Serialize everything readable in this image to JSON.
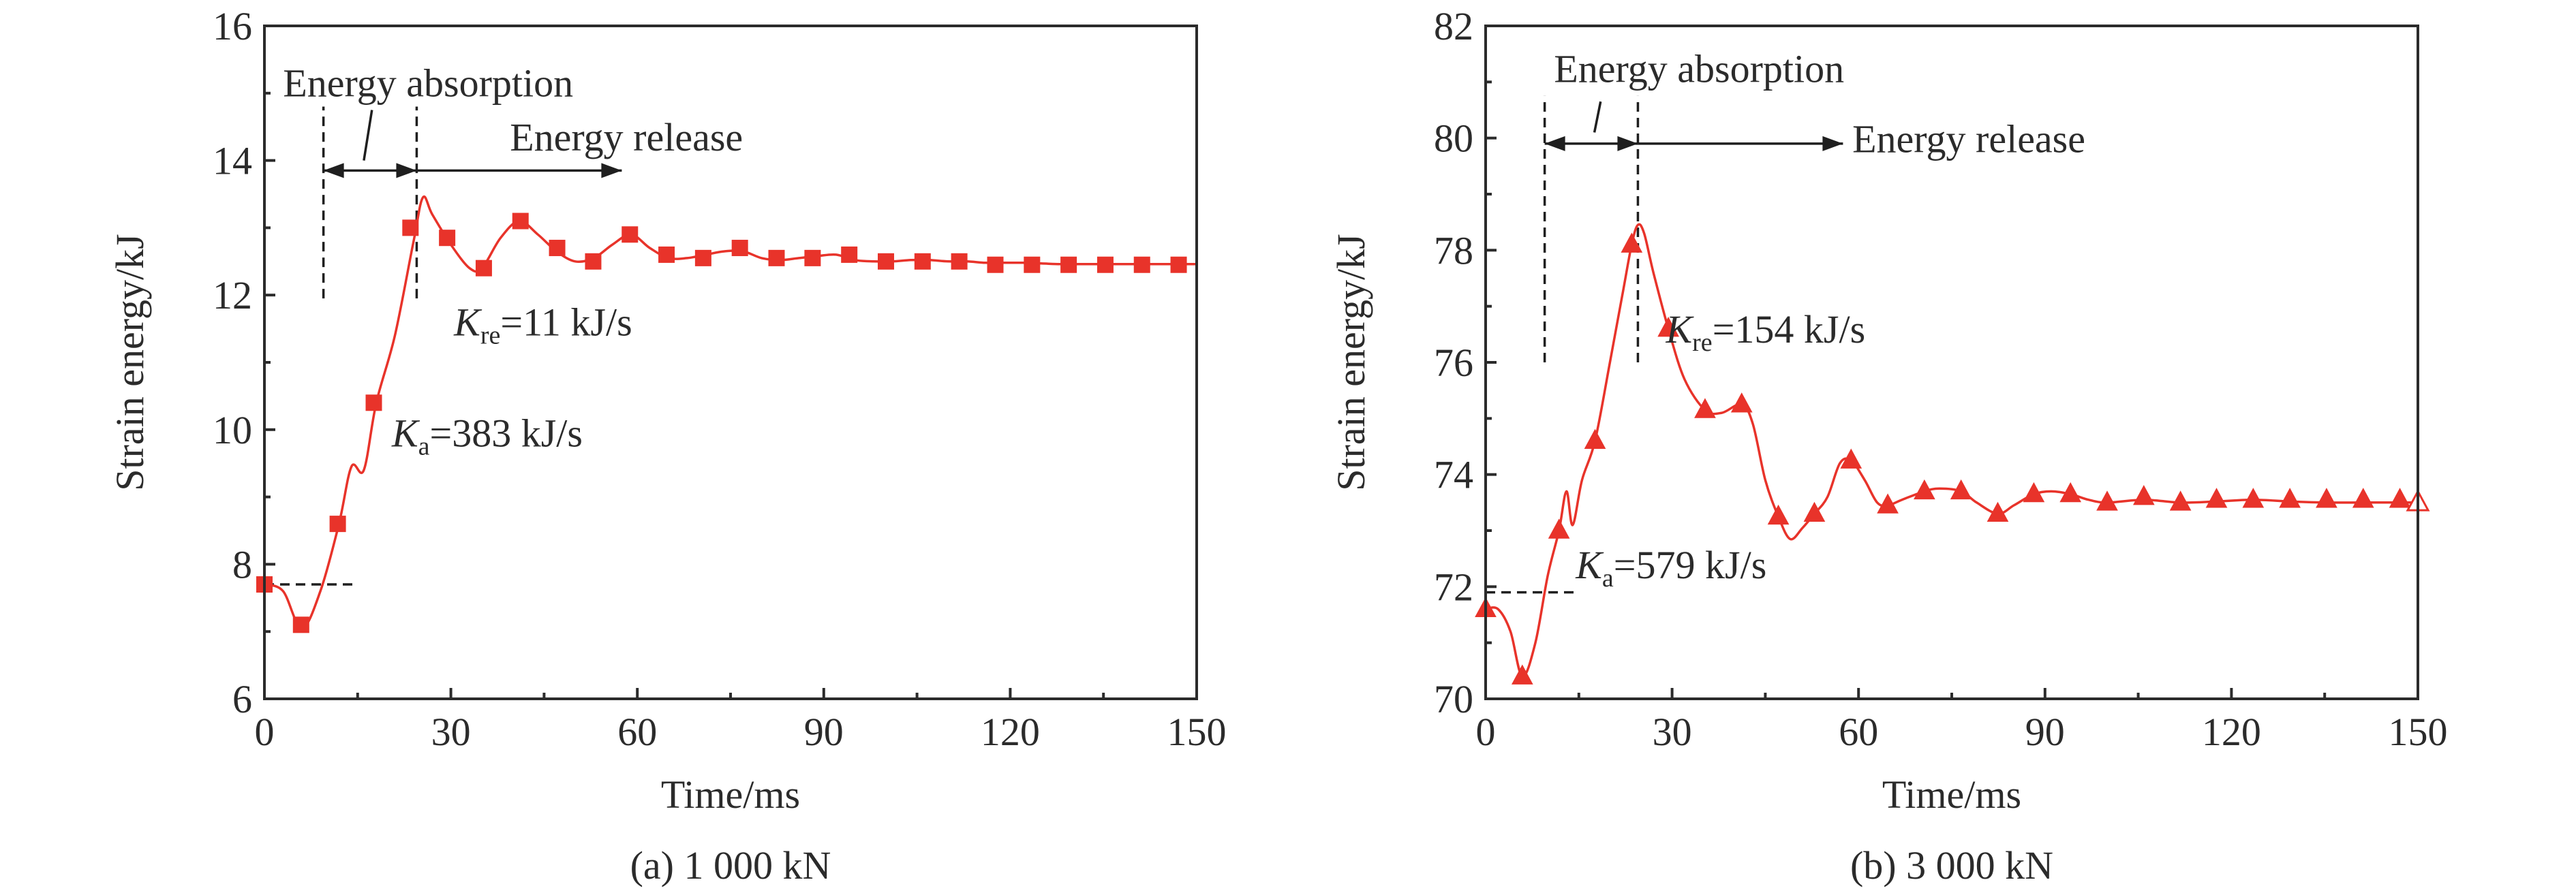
{
  "chart_data": [
    {
      "type": "line",
      "panel_caption": "(a) 1 000 kN",
      "xlabel": "Time/ms",
      "ylabel": "Strain energy/kJ",
      "xlim": [
        0,
        150
      ],
      "ylim": [
        6,
        16
      ],
      "xticks": [
        "0",
        "30",
        "60",
        "90",
        "120",
        "150"
      ],
      "yticks": [
        "6",
        "8",
        "10",
        "12",
        "14",
        "16"
      ],
      "grid": false,
      "marker": "square",
      "color": "#e8332a",
      "curve_x": [
        0,
        3,
        6,
        9,
        12,
        14,
        16,
        18,
        21,
        24,
        25.5,
        27,
        30,
        33,
        35,
        38,
        41,
        44,
        47,
        50,
        53,
        56,
        59,
        62,
        65,
        68,
        71,
        74,
        77,
        80,
        83,
        86,
        89,
        92,
        95,
        98,
        101,
        104,
        107,
        110,
        113,
        116,
        119,
        122,
        125,
        128,
        131,
        134,
        137,
        140,
        143,
        146,
        150
      ],
      "curve_y": [
        7.7,
        7.6,
        7.05,
        7.6,
        8.6,
        9.45,
        9.4,
        10.4,
        11.4,
        12.8,
        13.45,
        13.2,
        12.75,
        12.4,
        12.4,
        12.85,
        13.1,
        12.9,
        12.65,
        12.5,
        12.55,
        12.75,
        12.9,
        12.7,
        12.55,
        12.55,
        12.6,
        12.65,
        12.65,
        12.55,
        12.52,
        12.55,
        12.58,
        12.6,
        12.52,
        12.5,
        12.5,
        12.52,
        12.52,
        12.5,
        12.5,
        12.48,
        12.48,
        12.48,
        12.47,
        12.46,
        12.46,
        12.46,
        12.46,
        12.46,
        12.46,
        12.46,
        12.46
      ],
      "points": [
        [
          0,
          7.7
        ],
        [
          5.9,
          7.1
        ],
        [
          11.8,
          8.6
        ],
        [
          17.6,
          10.4
        ],
        [
          23.5,
          13.0
        ],
        [
          29.4,
          12.85
        ],
        [
          35.3,
          12.4
        ],
        [
          41.2,
          13.1
        ],
        [
          47.1,
          12.7
        ],
        [
          52.9,
          12.5
        ],
        [
          58.8,
          12.9
        ],
        [
          64.7,
          12.6
        ],
        [
          70.6,
          12.55
        ],
        [
          76.5,
          12.7
        ],
        [
          82.4,
          12.55
        ],
        [
          88.2,
          12.55
        ],
        [
          94.1,
          12.6
        ],
        [
          100,
          12.5
        ],
        [
          105.9,
          12.5
        ],
        [
          111.8,
          12.5
        ],
        [
          117.6,
          12.45
        ],
        [
          123.5,
          12.45
        ],
        [
          129.4,
          12.45
        ],
        [
          135.3,
          12.45
        ],
        [
          141.2,
          12.45
        ],
        [
          147.1,
          12.45
        ]
      ],
      "baseline": {
        "y": 7.7,
        "x_start": 0,
        "x_end": 14.5
      },
      "vlines": [
        {
          "x": 9.5,
          "y_from": 11.95,
          "y_to": 14.8
        },
        {
          "x": 24.5,
          "y_from": 11.95,
          "y_to": 14.8
        }
      ],
      "absorption_arrow": {
        "y": 13.85,
        "x_from": 9.5,
        "x_to": 24.5
      },
      "release_arrow": {
        "y": 13.85,
        "x_from": 24.5,
        "x_to": 57.5
      },
      "slash": {
        "x1": 16,
        "y1": 14.0,
        "x2": 17.3,
        "y2": 14.75
      },
      "labels": {
        "absorption": "Energy absorption",
        "release": "Energy release",
        "ka_symbol": "K",
        "ka_sub": "a",
        "ka_value": "=383 kJ/s",
        "kre_symbol": "K",
        "kre_sub": "re",
        "kre_value": "=11 kJ/s"
      },
      "label_pos": {
        "absorption": [
          3,
          14.95
        ],
        "release": [
          39.5,
          14.15
        ],
        "ka": [
          20.5,
          9.75
        ],
        "kre": [
          30.5,
          11.4
        ]
      }
    },
    {
      "type": "line",
      "panel_caption": "(b) 3 000 kN",
      "xlabel": "Time/ms",
      "ylabel": "Strain energy/kJ",
      "xlim": [
        0,
        150
      ],
      "ylim": [
        70,
        82
      ],
      "xticks": [
        "0",
        "30",
        "60",
        "90",
        "120",
        "150"
      ],
      "yticks": [
        "70",
        "72",
        "74",
        "76",
        "78",
        "80",
        "82"
      ],
      "grid": false,
      "marker": "triangle",
      "color": "#e8332a",
      "curve_x": [
        0,
        2,
        4,
        5.9,
        8,
        10,
        11.8,
        13,
        14,
        15.5,
        17.6,
        20,
        22,
        23.5,
        24.5,
        25.5,
        27,
        29.4,
        32,
        35.3,
        38,
        41.2,
        43,
        45,
        47.1,
        49,
        51,
        52.9,
        55,
        57,
        58.8,
        61,
        63,
        64.7,
        67,
        70.6,
        73,
        76.5,
        79,
        82.4,
        85,
        88.2,
        91,
        94.1,
        97,
        100,
        105.9,
        111.8,
        117.6,
        123.5,
        129.4,
        135.3,
        141.2,
        147.1,
        150
      ],
      "curve_y": [
        71.6,
        71.6,
        71.2,
        70.4,
        71.0,
        72.2,
        73.0,
        73.7,
        73.1,
        73.9,
        74.6,
        76.0,
        77.2,
        78.1,
        78.45,
        78.3,
        77.6,
        76.6,
        75.7,
        75.15,
        75.1,
        75.25,
        74.9,
        73.9,
        73.25,
        72.85,
        73.05,
        73.3,
        73.6,
        74.2,
        74.25,
        73.9,
        73.5,
        73.45,
        73.55,
        73.7,
        73.75,
        73.7,
        73.5,
        73.3,
        73.45,
        73.65,
        73.7,
        73.65,
        73.55,
        73.5,
        73.55,
        73.5,
        73.52,
        73.55,
        73.52,
        73.5,
        73.5,
        73.5,
        73.5
      ],
      "points": [
        [
          0,
          71.6
        ],
        [
          5.9,
          70.4
        ],
        [
          11.8,
          73.0
        ],
        [
          17.6,
          74.6
        ],
        [
          23.5,
          78.1
        ],
        [
          29.4,
          76.6
        ],
        [
          35.3,
          75.15
        ],
        [
          41.2,
          75.25
        ],
        [
          47.1,
          73.25
        ],
        [
          52.9,
          73.3
        ],
        [
          58.8,
          74.25
        ],
        [
          64.7,
          73.45
        ],
        [
          70.6,
          73.7
        ],
        [
          76.5,
          73.7
        ],
        [
          82.4,
          73.3
        ],
        [
          88.2,
          73.65
        ],
        [
          94.1,
          73.65
        ],
        [
          100,
          73.5
        ],
        [
          105.9,
          73.6
        ],
        [
          111.8,
          73.5
        ],
        [
          117.6,
          73.55
        ],
        [
          123.5,
          73.55
        ],
        [
          129.4,
          73.55
        ],
        [
          135.3,
          73.55
        ],
        [
          141.2,
          73.55
        ],
        [
          147.1,
          73.55
        ],
        [
          150,
          73.5
        ]
      ],
      "hollow_last": true,
      "baseline": {
        "y": 71.9,
        "x_start": 0,
        "x_end": 14.5
      },
      "vlines": [
        {
          "x": 9.5,
          "y_from": 76.0,
          "y_to": 80.75
        },
        {
          "x": 24.5,
          "y_from": 76.0,
          "y_to": 80.75
        }
      ],
      "absorption_arrow": {
        "y": 79.9,
        "x_from": 9.5,
        "x_to": 24.5
      },
      "release_arrow": {
        "y": 79.9,
        "x_from": 24.5,
        "x_to": 57.5
      },
      "slash": {
        "x1": 17.5,
        "y1": 80.1,
        "x2": 18.5,
        "y2": 80.65
      },
      "labels": {
        "absorption": "Energy absorption",
        "release": "Energy release",
        "ka_symbol": "K",
        "ka_sub": "a",
        "ka_value": "=579 kJ/s",
        "kre_symbol": "K",
        "kre_sub": "re",
        "kre_value": "=154 kJ/s"
      },
      "label_pos": {
        "absorption": [
          11,
          81.0
        ],
        "release": [
          59,
          79.75
        ],
        "ka": [
          14.5,
          72.15
        ],
        "kre": [
          29,
          76.35
        ]
      }
    }
  ]
}
